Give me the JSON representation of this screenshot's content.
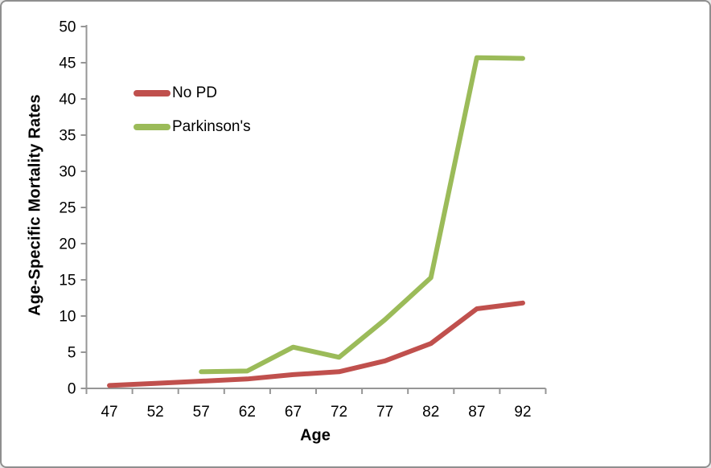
{
  "window": {
    "background": "#ffffff",
    "border_color": "#8f8f8f"
  },
  "chart_data": {
    "type": "line",
    "title": "",
    "xlabel": "Age",
    "ylabel": "Age-Specific Mortality Rates",
    "categories": [
      "47",
      "52",
      "57",
      "62",
      "67",
      "72",
      "77",
      "82",
      "87",
      "92"
    ],
    "yticks": [
      0,
      5,
      10,
      15,
      20,
      25,
      30,
      35,
      40,
      45,
      50
    ],
    "ylim": [
      0,
      50
    ],
    "grid": false,
    "legend_position": "inside-top-left",
    "axis_color": "#969696",
    "tick_label_color": "#000000",
    "series": [
      {
        "name": "No PD",
        "color": "#C0504D",
        "values": [
          0.4,
          0.7,
          1.0,
          1.3,
          1.9,
          2.3,
          3.8,
          6.2,
          11.0,
          11.8
        ]
      },
      {
        "name": "Parkinson's",
        "color": "#9BBB59",
        "values": [
          null,
          null,
          2.3,
          2.4,
          5.7,
          4.3,
          9.5,
          15.3,
          45.7,
          45.6
        ]
      }
    ]
  }
}
